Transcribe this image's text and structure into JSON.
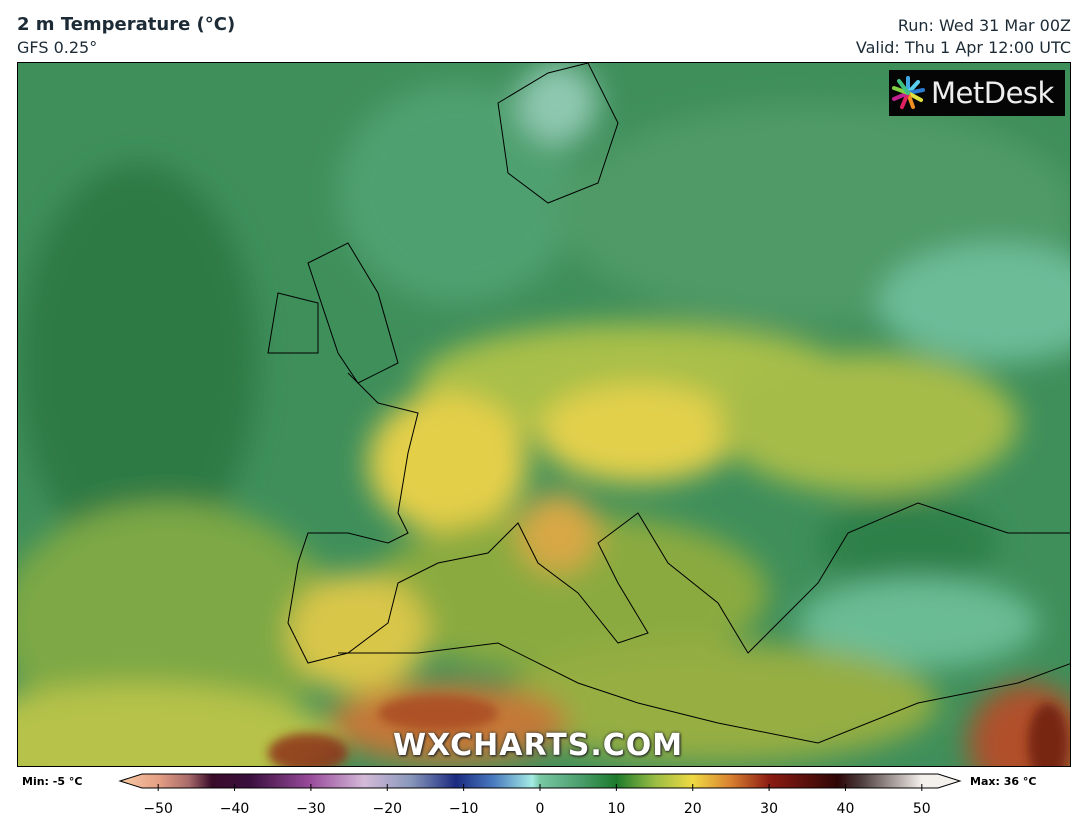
{
  "header": {
    "title": "2 m Temperature (°C)",
    "model": "GFS 0.25°",
    "run": "Run: Wed 31 Mar 00Z",
    "valid": "Valid: Thu 1 Apr 12:00 UTC"
  },
  "logo": {
    "text": "MetDesk"
  },
  "watermark": "WXCHARTS.COM",
  "colorbar": {
    "min_label": "Min: -5 °C",
    "max_label": "Max: 36 °C",
    "ticks": [
      "−50",
      "−40",
      "−30",
      "−20",
      "−10",
      "0",
      "10",
      "20",
      "30",
      "40",
      "50"
    ],
    "tick_values": [
      -50,
      -40,
      -30,
      -20,
      -10,
      0,
      10,
      20,
      30,
      40,
      50
    ],
    "range": [
      -55,
      55
    ],
    "stops": [
      [
        -55,
        "#f6c9a4"
      ],
      [
        -50,
        "#e6a084"
      ],
      [
        -46,
        "#a86a6a"
      ],
      [
        -43,
        "#3a0c2a"
      ],
      [
        -38,
        "#3a0e3e"
      ],
      [
        -30,
        "#9a4c9c"
      ],
      [
        -23,
        "#d4bad8"
      ],
      [
        -17,
        "#8a98bc"
      ],
      [
        -11,
        "#1a2a80"
      ],
      [
        -6,
        "#4a7cc0"
      ],
      [
        -1,
        "#a4ece4"
      ],
      [
        0,
        "#78c8a4"
      ],
      [
        5,
        "#4ea070"
      ],
      [
        10,
        "#1c7a2c"
      ],
      [
        15,
        "#98bc44"
      ],
      [
        20,
        "#f0da44"
      ],
      [
        25,
        "#d88030"
      ],
      [
        30,
        "#8c1c12"
      ],
      [
        39,
        "#2e0606"
      ],
      [
        42,
        "#4c3c3c"
      ],
      [
        50,
        "#f4f0ec"
      ]
    ]
  },
  "colors": {
    "ocean": "#3f8f5b",
    "warm_land": "#e6d04a",
    "hot": "#b8562a",
    "cold": "#7ac8a8"
  }
}
